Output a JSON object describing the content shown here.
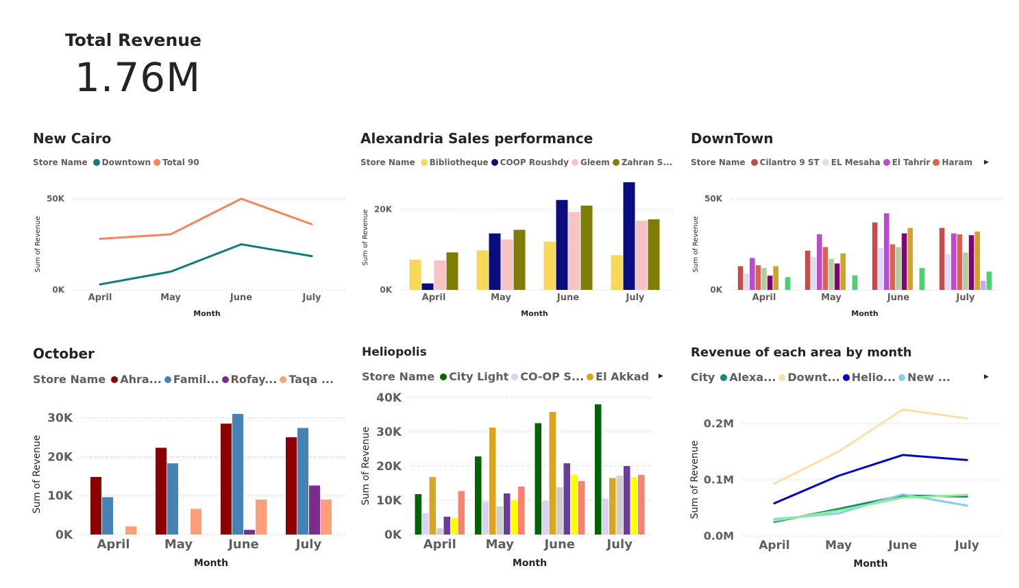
{
  "kpi": {
    "title": "Total Revenue",
    "value": "1.76M"
  },
  "panels": {
    "new_cairo": {
      "title": "New Cairo",
      "legend_label": "Store Name",
      "legend": [
        {
          "name": "Downtown",
          "color": "#0f7b7b"
        },
        {
          "name": "Total 90",
          "color": "#f5845a"
        }
      ],
      "has_more": false
    },
    "alexandria": {
      "title": "Alexandria Sales performance",
      "legend_label": "Store Name",
      "legend": [
        {
          "name": "Bibliotheque",
          "color": "#f7d858"
        },
        {
          "name": "COOP Roushdy",
          "color": "#0b0c7d"
        },
        {
          "name": "Gleem",
          "color": "#f8c3c3"
        },
        {
          "name": "Zahran S...",
          "color": "#7e7e06"
        }
      ],
      "has_more": false
    },
    "downtown": {
      "title": "DownTown",
      "legend_label": "Store Name",
      "legend": [
        {
          "name": "Cilantro 9 ST",
          "color": "#c74b4b"
        },
        {
          "name": "EL Mesaha",
          "color": "#dcdcf5"
        },
        {
          "name": "El Tahrir",
          "color": "#b94ec9"
        },
        {
          "name": "Haram",
          "color": "#e0604f"
        }
      ],
      "has_more": true
    },
    "october": {
      "title": "October",
      "legend_label": "Store Name",
      "legend": [
        {
          "name": "Ahra...",
          "color": "#8b0000"
        },
        {
          "name": "Famil...",
          "color": "#4682b4"
        },
        {
          "name": "Rofay...",
          "color": "#7b2d8e"
        },
        {
          "name": "Taqa ...",
          "color": "#ffa07a"
        }
      ],
      "has_more": false
    },
    "heliopolis": {
      "title": "Heliopolis",
      "legend_label": "Store Name",
      "legend": [
        {
          "name": "City Light",
          "color": "#006400"
        },
        {
          "name": "CO-OP S...",
          "color": "#d8d4f2"
        },
        {
          "name": "El Akkad",
          "color": "#daa520"
        }
      ],
      "has_more": true
    },
    "area": {
      "title": "Revenue of each area by month",
      "legend_label": "City",
      "legend": [
        {
          "name": "Alexa...",
          "color": "#0f8b7a"
        },
        {
          "name": "Downt...",
          "color": "#f8e0a8"
        },
        {
          "name": "Helio...",
          "color": "#0000cd"
        },
        {
          "name": "New ...",
          "color": "#87ceeb"
        }
      ],
      "has_more": true
    }
  },
  "chart_data": [
    {
      "id": "new_cairo",
      "type": "line",
      "categories": [
        "April",
        "May",
        "June",
        "July"
      ],
      "xlabel": "Month",
      "ylabel": "Sum of Revenue",
      "ylim": [
        0,
        50000
      ],
      "yticks": [
        0,
        50000
      ],
      "ytick_labels": [
        "0K",
        "50K"
      ],
      "grid": true,
      "series": [
        {
          "name": "Downtown",
          "color": "#0f7b7b",
          "values": [
            3000,
            10000,
            25000,
            18500
          ]
        },
        {
          "name": "Total 90",
          "color": "#f5845a",
          "values": [
            28000,
            30500,
            50000,
            36000
          ]
        }
      ]
    },
    {
      "id": "alexandria",
      "type": "bar",
      "categories": [
        "April",
        "May",
        "June",
        "July"
      ],
      "xlabel": "Month",
      "ylabel": "Sum of Revenue",
      "ylim": [
        0,
        26000
      ],
      "yticks": [
        0,
        20000
      ],
      "ytick_labels": [
        "0K",
        "20K"
      ],
      "grid": true,
      "series": [
        {
          "name": "Bibliotheque",
          "color": "#f7d858",
          "values": [
            7500,
            9800,
            12000,
            8600
          ]
        },
        {
          "name": "COOP Roushdy",
          "color": "#0b0c7d",
          "values": [
            1600,
            14000,
            22300,
            26700
          ]
        },
        {
          "name": "Gleem",
          "color": "#f8c3c3",
          "values": [
            7300,
            12500,
            19300,
            17200
          ]
        },
        {
          "name": "Zahran S...",
          "color": "#7e7e06",
          "values": [
            9300,
            14900,
            20900,
            17500
          ]
        }
      ]
    },
    {
      "id": "downtown",
      "type": "bar",
      "categories": [
        "April",
        "May",
        "June",
        "July"
      ],
      "xlabel": "Month",
      "ylabel": "Sum of Revenue",
      "ylim": [
        0,
        50000
      ],
      "yticks": [
        0,
        50000
      ],
      "ytick_labels": [
        "0K",
        "50K"
      ],
      "grid": true,
      "series": [
        {
          "name": "Cilantro 9 ST",
          "color": "#c74b4b",
          "values": [
            13000,
            21500,
            37000,
            34000
          ]
        },
        {
          "name": "EL Mesaha",
          "color": "#dcdcf5",
          "values": [
            9000,
            18000,
            23000,
            19500
          ]
        },
        {
          "name": "El Tahrir",
          "color": "#b94ec9",
          "values": [
            17500,
            30500,
            42000,
            31000
          ]
        },
        {
          "name": "Haram",
          "color": "#e0604f",
          "values": [
            13500,
            23500,
            25000,
            30500
          ]
        },
        {
          "name": "",
          "color": "#b3cca1",
          "values": [
            12000,
            17000,
            23500,
            20500
          ]
        },
        {
          "name": "",
          "color": "#7a0a6e",
          "values": [
            7800,
            14500,
            31000,
            30000
          ]
        },
        {
          "name": "",
          "color": "#d6a02a",
          "values": [
            13000,
            20000,
            34000,
            32000
          ]
        },
        {
          "name": "",
          "color": "#c9a8f2",
          "values": [
            0,
            0,
            0,
            5000
          ]
        },
        {
          "name": "",
          "color": "#4fcf6f",
          "values": [
            7000,
            8000,
            12000,
            10000
          ]
        }
      ]
    },
    {
      "id": "october",
      "type": "bar",
      "categories": [
        "April",
        "May",
        "June",
        "July"
      ],
      "xlabel": "Month",
      "ylabel": "Sum of Revenue",
      "ylim": [
        0,
        31000
      ],
      "yticks": [
        0,
        10000,
        20000,
        30000
      ],
      "ytick_labels": [
        "0K",
        "10K",
        "20K",
        "30K"
      ],
      "grid": true,
      "series": [
        {
          "name": "Ahra...",
          "color": "#8b0000",
          "values": [
            14800,
            22300,
            28500,
            25000
          ]
        },
        {
          "name": "Famil...",
          "color": "#4682b4",
          "values": [
            9600,
            18300,
            31000,
            27400
          ]
        },
        {
          "name": "Rofay...",
          "color": "#7b2d8e",
          "values": [
            0,
            0,
            1200,
            12600
          ]
        },
        {
          "name": "Taqa ...",
          "color": "#ffa07a",
          "values": [
            2100,
            6600,
            9000,
            9000
          ]
        }
      ]
    },
    {
      "id": "heliopolis",
      "type": "bar",
      "categories": [
        "April",
        "May",
        "June",
        "July"
      ],
      "xlabel": "Month",
      "ylabel": "Sum of Revenue",
      "ylim": [
        0,
        40000
      ],
      "yticks": [
        0,
        10000,
        20000,
        30000,
        40000
      ],
      "ytick_labels": [
        "0K",
        "10K",
        "20K",
        "30K",
        "40K"
      ],
      "grid": true,
      "series": [
        {
          "name": "City Light",
          "color": "#006400",
          "values": [
            11800,
            22800,
            32500,
            38000
          ]
        },
        {
          "name": "CO-OP S...",
          "color": "#d8d4f2",
          "values": [
            6200,
            9600,
            9800,
            10500
          ]
        },
        {
          "name": "El Akkad",
          "color": "#daa520",
          "values": [
            16800,
            31200,
            35800,
            16500
          ]
        },
        {
          "name": "",
          "color": "#cfcfcf",
          "values": [
            1800,
            8200,
            13800,
            17200
          ]
        },
        {
          "name": "",
          "color": "#6a3d9a",
          "values": [
            5200,
            12000,
            20800,
            20000
          ]
        },
        {
          "name": "",
          "color": "#ffff00",
          "values": [
            4800,
            10000,
            17500,
            16700
          ]
        },
        {
          "name": "",
          "color": "#fa8072",
          "values": [
            12700,
            14000,
            15600,
            17400
          ]
        }
      ]
    },
    {
      "id": "area",
      "type": "line",
      "categories": [
        "April",
        "May",
        "June",
        "July"
      ],
      "xlabel": "Month",
      "ylabel": "Sum of Revenue",
      "ylim": [
        0,
        0.2
      ],
      "yticks": [
        0,
        0.1,
        0.2
      ],
      "ytick_labels": [
        "0.0M",
        "0.1M",
        "0.2M"
      ],
      "grid": true,
      "series": [
        {
          "name": "Downt...",
          "color": "#f8e0a8",
          "values": [
            0.093,
            0.15,
            0.225,
            0.209
          ]
        },
        {
          "name": "Helio...",
          "color": "#0000cd",
          "values": [
            0.058,
            0.107,
            0.144,
            0.135
          ]
        },
        {
          "name": "Alexa...",
          "color": "#0f8b7a",
          "values": [
            0.025,
            0.048,
            0.072,
            0.07
          ]
        },
        {
          "name": "New ...",
          "color": "#87ceeb",
          "values": [
            0.03,
            0.04,
            0.074,
            0.054
          ]
        },
        {
          "name": "",
          "color": "#90ee90",
          "values": [
            0.027,
            0.045,
            0.068,
            0.073
          ]
        }
      ]
    }
  ]
}
